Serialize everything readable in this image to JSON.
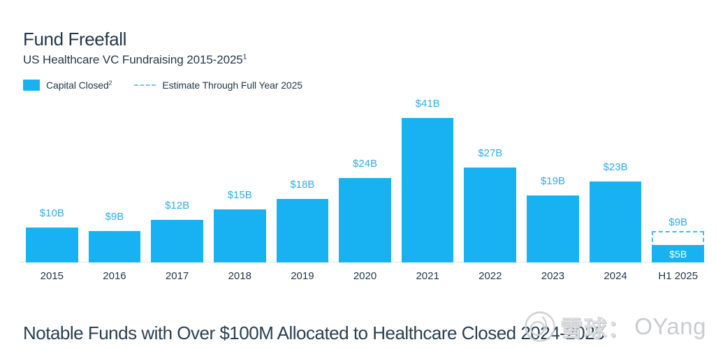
{
  "header": {
    "title": "Fund Freefall",
    "subtitle": "US Healthcare VC Fundraising 2015-2025",
    "subtitle_superscript": "1"
  },
  "legend": {
    "capital_label": "Capital Closed",
    "capital_superscript": "2",
    "estimate_label": "Estimate Through Full Year 2025"
  },
  "chart_data": {
    "type": "bar",
    "title": "Fund Freefall",
    "subtitle": "US Healthcare VC Fundraising 2015-2025",
    "categories": [
      "2015",
      "2016",
      "2017",
      "2018",
      "2019",
      "2020",
      "2021",
      "2022",
      "2023",
      "2024",
      "H1 2025"
    ],
    "series": [
      {
        "name": "Capital Closed",
        "values": [
          10,
          9,
          12,
          15,
          18,
          24,
          41,
          27,
          19,
          23,
          5
        ]
      }
    ],
    "value_labels": [
      "$10B",
      "$9B",
      "$12B",
      "$15B",
      "$18B",
      "$24B",
      "$41B",
      "$27B",
      "$19B",
      "$23B",
      "$5B"
    ],
    "estimate": {
      "category": "H1 2025",
      "value": 9,
      "label": "$9B",
      "name": "Estimate Through Full Year 2025"
    },
    "unit": "billions USD",
    "ylim": [
      0,
      41
    ],
    "grid": false,
    "y_axis_shown": false,
    "legend_position": "top-left"
  },
  "footer": {
    "heading": "Notable Funds with Over $100M Allocated to Healthcare Closed 2024-2025"
  },
  "watermark": {
    "cjk": "雪球：",
    "latin": "OYang"
  },
  "colors": {
    "background": "#FFFFFF",
    "bar": "#18B2F2",
    "value_label": "#33ACE5",
    "estimate_dash": "#7CC8DC",
    "estimate_border": "#3FBCEE",
    "text_dark": "#24384A",
    "footer_text": "#2A4052",
    "axis_line": "#E1E1E1",
    "watermark": "#C7C9CE",
    "watermark_cjk": "#DCDDE1"
  }
}
